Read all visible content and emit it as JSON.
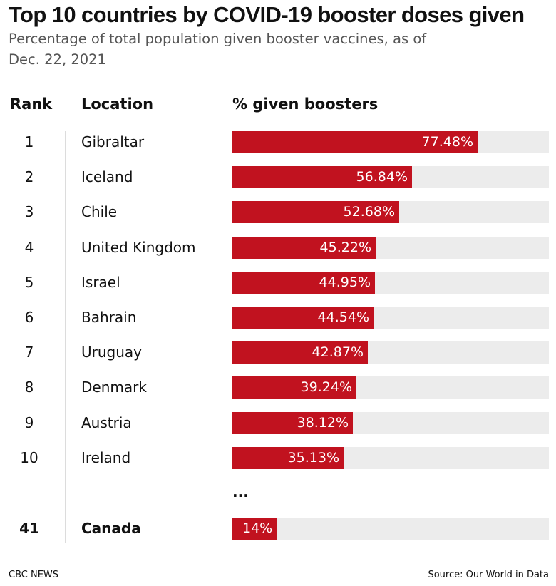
{
  "header": {
    "title": "Top 10 countries by COVID-19 booster doses given",
    "subtitle": "Percentage of total population given booster vaccines, as of Dec. 22, 2021"
  },
  "columns": {
    "rank": "Rank",
    "location": "Location",
    "percent": "% given boosters"
  },
  "ellipsis": "...",
  "footer": {
    "brand": "CBC NEWS",
    "source": "Source: Our World in Data"
  },
  "colors": {
    "bar": "#c1121f",
    "track": "#ececec"
  },
  "chart_data": {
    "type": "bar",
    "orientation": "horizontal",
    "title": "Top 10 countries by COVID-19 booster doses given",
    "subtitle": "Percentage of total population given booster vaccines, as of Dec. 22, 2021",
    "xlim": [
      0,
      100
    ],
    "rows": [
      {
        "rank": "1",
        "location": "Gibraltar",
        "value": 77.48,
        "label": "77.48%"
      },
      {
        "rank": "2",
        "location": "Iceland",
        "value": 56.84,
        "label": "56.84%"
      },
      {
        "rank": "3",
        "location": "Chile",
        "value": 52.68,
        "label": "52.68%"
      },
      {
        "rank": "4",
        "location": "United Kingdom",
        "value": 45.22,
        "label": "45.22%"
      },
      {
        "rank": "5",
        "location": "Israel",
        "value": 44.95,
        "label": "44.95%"
      },
      {
        "rank": "6",
        "location": "Bahrain",
        "value": 44.54,
        "label": "44.54%"
      },
      {
        "rank": "7",
        "location": "Uruguay",
        "value": 42.87,
        "label": "42.87%"
      },
      {
        "rank": "8",
        "location": "Denmark",
        "value": 39.24,
        "label": "39.24%"
      },
      {
        "rank": "9",
        "location": "Austria",
        "value": 38.12,
        "label": "38.12%"
      },
      {
        "rank": "10",
        "location": "Ireland",
        "value": 35.13,
        "label": "35.13%"
      },
      {
        "rank": "41",
        "location": "Canada",
        "value": 14,
        "label": "14%",
        "highlight": true
      }
    ]
  }
}
